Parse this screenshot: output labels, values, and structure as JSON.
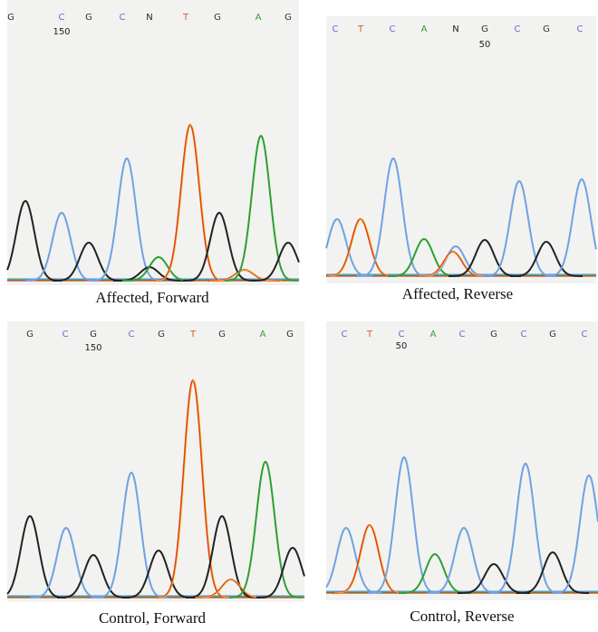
{
  "panels": [
    {
      "caption": "Affected, Forward",
      "bases": [
        "G",
        "C",
        "G",
        "C",
        "N",
        "T",
        "G",
        "A",
        "G"
      ],
      "position_label": "150"
    },
    {
      "caption": "Affected, Reverse",
      "bases": [
        "C",
        "T",
        "C",
        "A",
        "N",
        "G",
        "C",
        "G",
        "C"
      ],
      "position_label": "50"
    },
    {
      "caption": "Control, Forward",
      "bases": [
        "G",
        "C",
        "G",
        "C",
        "G",
        "T",
        "G",
        "A",
        "G"
      ],
      "position_label": "150"
    },
    {
      "caption": "Control, Reverse",
      "bases": [
        "C",
        "T",
        "C",
        "A",
        "C",
        "G",
        "C",
        "G",
        "C"
      ],
      "position_label": "50"
    }
  ]
}
